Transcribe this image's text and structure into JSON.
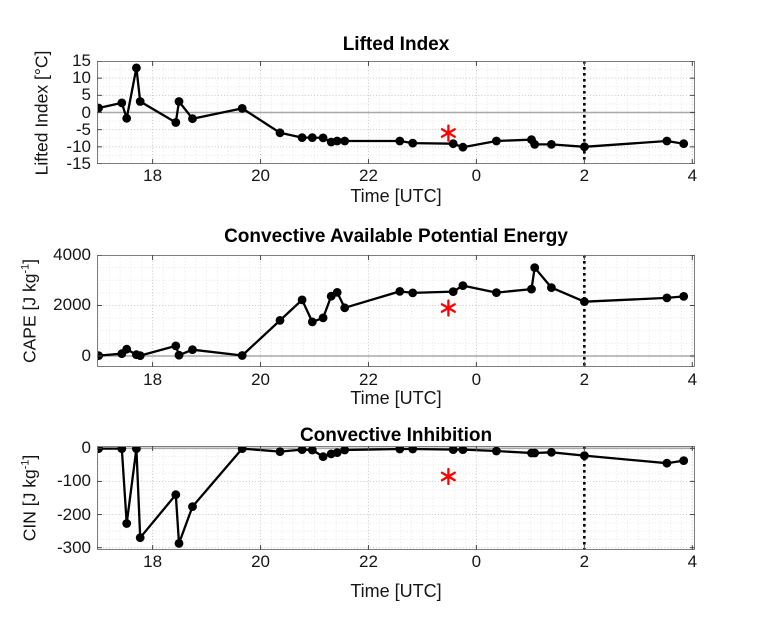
{
  "figure": {
    "background": "#ffffff",
    "line_color": "#000000",
    "marker_color": "#000000",
    "event_marker_color": "#ff0000",
    "cutoff_line_color": "#000000",
    "zero_line_color": "#a8a8a8",
    "grid_major_color": "#cccccc",
    "grid_minor_color": "#e7e7e7",
    "axes_box_color": "#7d7d7d"
  },
  "chart_data": [
    {
      "type": "line",
      "title": "Lifted Index",
      "xlabel": "Time [UTC]",
      "ylabel": {
        "text": "Lifted Index [°C]",
        "sup": "",
        "end": ""
      },
      "xlim": [
        16.97,
        28.05
      ],
      "ylim": [
        -15,
        15
      ],
      "xticks": [
        {
          "v": 18,
          "label": "18"
        },
        {
          "v": 20,
          "label": "20"
        },
        {
          "v": 22,
          "label": "22"
        },
        {
          "v": 24,
          "label": "0"
        },
        {
          "v": 26,
          "label": "2"
        },
        {
          "v": 28,
          "label": "4"
        }
      ],
      "yticks": [
        15,
        10,
        5,
        0,
        -5,
        -10,
        -15
      ],
      "x": [
        17.0,
        17.43,
        17.52,
        17.7,
        17.77,
        18.43,
        18.49,
        18.74,
        19.66,
        20.36,
        20.77,
        20.96,
        21.16,
        21.31,
        21.42,
        21.56,
        22.58,
        22.82,
        23.57,
        23.75,
        24.37,
        25.02,
        25.08,
        25.39,
        26.0,
        27.53,
        27.84
      ],
      "y": [
        1.3,
        2.8,
        -1.7,
        13.0,
        3.2,
        -2.9,
        3.2,
        -1.8,
        1.2,
        -5.9,
        -7.3,
        -7.3,
        -7.4,
        -8.6,
        -8.3,
        -8.3,
        -8.3,
        -8.9,
        -9.1,
        -10.1,
        -8.3,
        -7.9,
        -9.3,
        -9.3,
        -10.0,
        -8.3,
        -9.1
      ],
      "event_marker": {
        "x": 23.48,
        "y": -6,
        "shape": "asterisk",
        "color": "#ff0000"
      },
      "vline": {
        "x": 26,
        "style": "dotted",
        "color": "#000000"
      },
      "zero_line": true
    },
    {
      "type": "line",
      "title": "Convective Available Potential Energy",
      "xlabel": "Time [UTC]",
      "ylabel": {
        "text": "CAPE [J kg",
        "sup": "-1",
        "end": "]"
      },
      "xlim": [
        16.97,
        28.05
      ],
      "ylim": [
        -436,
        4000
      ],
      "xticks": [
        {
          "v": 18,
          "label": "18"
        },
        {
          "v": 20,
          "label": "20"
        },
        {
          "v": 22,
          "label": "22"
        },
        {
          "v": 24,
          "label": "0"
        },
        {
          "v": 26,
          "label": "2"
        },
        {
          "v": 28,
          "label": "4"
        }
      ],
      "yticks": [
        4000,
        2000,
        0
      ],
      "x": [
        17.0,
        17.43,
        17.52,
        17.7,
        17.77,
        18.43,
        18.49,
        18.74,
        19.66,
        20.36,
        20.77,
        20.96,
        21.16,
        21.31,
        21.42,
        21.56,
        22.58,
        22.82,
        23.57,
        23.75,
        24.37,
        25.02,
        25.08,
        25.39,
        26.0,
        27.53,
        27.84
      ],
      "y": [
        15,
        90,
        270,
        50,
        15,
        400,
        30,
        250,
        20,
        1410,
        2220,
        1350,
        1510,
        2370,
        2520,
        1910,
        2560,
        2500,
        2550,
        2790,
        2510,
        2650,
        3500,
        2710,
        2150,
        2300,
        2360
      ],
      "event_marker": {
        "x": 23.48,
        "y": 1900,
        "shape": "asterisk",
        "color": "#ff0000"
      },
      "vline": {
        "x": 26,
        "style": "dotted",
        "color": "#000000"
      },
      "zero_line": true
    },
    {
      "type": "line",
      "title": "Convective Inhibition",
      "xlabel": "Time [UTC]",
      "ylabel": {
        "text": "CIN [J kg",
        "sup": "-1",
        "end": "]"
      },
      "xlim": [
        16.97,
        28.05
      ],
      "ylim": [
        -307,
        7
      ],
      "xticks": [
        {
          "v": 18,
          "label": "18"
        },
        {
          "v": 20,
          "label": "20"
        },
        {
          "v": 22,
          "label": "22"
        },
        {
          "v": 24,
          "label": "0"
        },
        {
          "v": 26,
          "label": "2"
        },
        {
          "v": 28,
          "label": "4"
        }
      ],
      "yticks": [
        0,
        -100,
        -200,
        -300
      ],
      "x": [
        17.0,
        17.43,
        17.52,
        17.7,
        17.77,
        18.43,
        18.49,
        18.74,
        19.66,
        20.36,
        20.77,
        20.96,
        21.16,
        21.31,
        21.42,
        21.56,
        22.58,
        22.82,
        23.57,
        23.75,
        24.37,
        25.02,
        25.08,
        25.39,
        26.0,
        27.53,
        27.84
      ],
      "y": [
        -1,
        -1,
        -227,
        -1,
        -270,
        -140,
        -287,
        -176,
        -1,
        -10,
        -4,
        -5,
        -25,
        -17,
        -13,
        -5,
        -2,
        -2,
        -4,
        -4,
        -8,
        -14,
        -14,
        -12,
        -22,
        -45,
        -37
      ],
      "event_marker": {
        "x": 23.48,
        "y": -85,
        "shape": "asterisk",
        "color": "#ff0000"
      },
      "vline": {
        "x": 26,
        "style": "dotted",
        "color": "#000000"
      },
      "zero_line": true
    }
  ]
}
